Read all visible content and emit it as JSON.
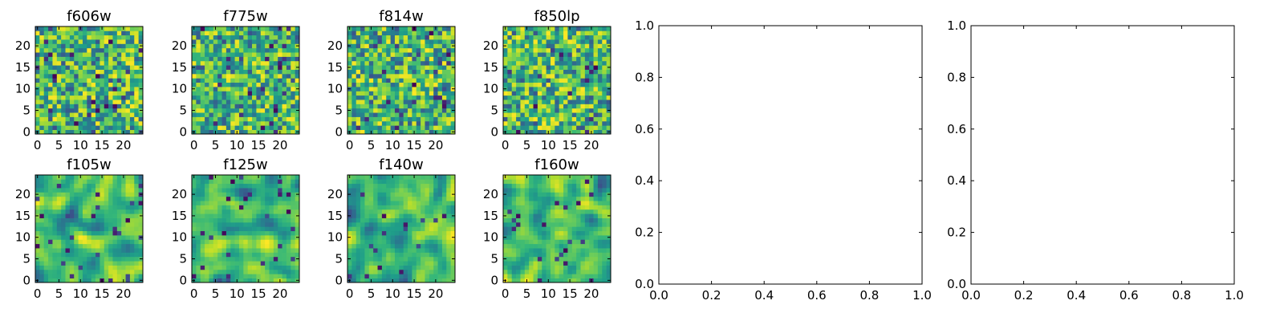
{
  "chart_data": [
    {
      "type": "heatmap",
      "title": "f606w",
      "colormap": "viridis",
      "xticks": [
        "0",
        "5",
        "10",
        "15",
        "20"
      ],
      "yticks": [
        "0",
        "5",
        "10",
        "15",
        "20"
      ],
      "xlim": [
        -0.5,
        24.5
      ],
      "ylim": [
        -0.5,
        24.5
      ],
      "grid_size": [
        25,
        25
      ],
      "values": "25x25 noise-like pixel intensities (not individually labeled)"
    },
    {
      "type": "heatmap",
      "title": "f775w",
      "colormap": "viridis",
      "xticks": [
        "0",
        "5",
        "10",
        "15",
        "20"
      ],
      "yticks": [
        "0",
        "5",
        "10",
        "15",
        "20"
      ],
      "xlim": [
        -0.5,
        24.5
      ],
      "ylim": [
        -0.5,
        24.5
      ],
      "grid_size": [
        25,
        25
      ],
      "values": "25x25 noise-like pixel intensities (not individually labeled)"
    },
    {
      "type": "heatmap",
      "title": "f814w",
      "colormap": "viridis",
      "xticks": [
        "0",
        "5",
        "10",
        "15",
        "20"
      ],
      "yticks": [
        "0",
        "5",
        "10",
        "15",
        "20"
      ],
      "xlim": [
        -0.5,
        24.5
      ],
      "ylim": [
        -0.5,
        24.5
      ],
      "grid_size": [
        25,
        25
      ],
      "values": "25x25 noise-like pixel intensities (not individually labeled)"
    },
    {
      "type": "heatmap",
      "title": "f850lp",
      "colormap": "viridis",
      "xticks": [
        "0",
        "5",
        "10",
        "15",
        "20"
      ],
      "yticks": [
        "0",
        "5",
        "10",
        "15",
        "20"
      ],
      "xlim": [
        -0.5,
        24.5
      ],
      "ylim": [
        -0.5,
        24.5
      ],
      "grid_size": [
        25,
        25
      ],
      "values": "25x25 noise-like pixel intensities (not individually labeled)"
    },
    {
      "type": "heatmap",
      "title": "f105w",
      "colormap": "viridis",
      "xticks": [
        "0",
        "5",
        "10",
        "15",
        "20"
      ],
      "yticks": [
        "0",
        "5",
        "10",
        "15",
        "20"
      ],
      "xlim": [
        -0.5,
        24.5
      ],
      "ylim": [
        -0.5,
        24.5
      ],
      "grid_size": [
        25,
        25
      ],
      "values": "25x25 smooth noise pixel intensities (not individually labeled)"
    },
    {
      "type": "heatmap",
      "title": "f125w",
      "colormap": "viridis",
      "xticks": [
        "0",
        "5",
        "10",
        "15",
        "20"
      ],
      "yticks": [
        "0",
        "5",
        "10",
        "15",
        "20"
      ],
      "xlim": [
        -0.5,
        24.5
      ],
      "ylim": [
        -0.5,
        24.5
      ],
      "grid_size": [
        25,
        25
      ],
      "values": "25x25 smooth noise pixel intensities (not individually labeled)"
    },
    {
      "type": "heatmap",
      "title": "f140w",
      "colormap": "viridis",
      "xticks": [
        "0",
        "5",
        "10",
        "15",
        "20"
      ],
      "yticks": [
        "0",
        "5",
        "10",
        "15",
        "20"
      ],
      "xlim": [
        -0.5,
        24.5
      ],
      "ylim": [
        -0.5,
        24.5
      ],
      "grid_size": [
        25,
        25
      ],
      "values": "25x25 smooth noise pixel intensities (not individually labeled)"
    },
    {
      "type": "heatmap",
      "title": "f160w",
      "colormap": "viridis",
      "xticks": [
        "0",
        "5",
        "10",
        "15",
        "20"
      ],
      "yticks": [
        "0",
        "5",
        "10",
        "15",
        "20"
      ],
      "xlim": [
        -0.5,
        24.5
      ],
      "ylim": [
        -0.5,
        24.5
      ],
      "grid_size": [
        25,
        25
      ],
      "values": "25x25 smooth noise pixel intensities (not individually labeled)"
    },
    {
      "type": "scatter",
      "title": "",
      "xlabel": "",
      "ylabel": "",
      "xlim": [
        0.0,
        1.0
      ],
      "ylim": [
        0.0,
        1.0
      ],
      "xticks": [
        "0.0",
        "0.2",
        "0.4",
        "0.6",
        "0.8",
        "1.0"
      ],
      "yticks": [
        "0.0",
        "0.2",
        "0.4",
        "0.6",
        "0.8",
        "1.0"
      ],
      "series": []
    },
    {
      "type": "scatter",
      "title": "",
      "xlabel": "",
      "ylabel": "",
      "xlim": [
        0.0,
        1.0
      ],
      "ylim": [
        0.0,
        1.0
      ],
      "xticks": [
        "0.0",
        "0.2",
        "0.4",
        "0.6",
        "0.8",
        "1.0"
      ],
      "yticks": [
        "0.0",
        "0.2",
        "0.4",
        "0.6",
        "0.8",
        "1.0"
      ],
      "series": []
    }
  ]
}
